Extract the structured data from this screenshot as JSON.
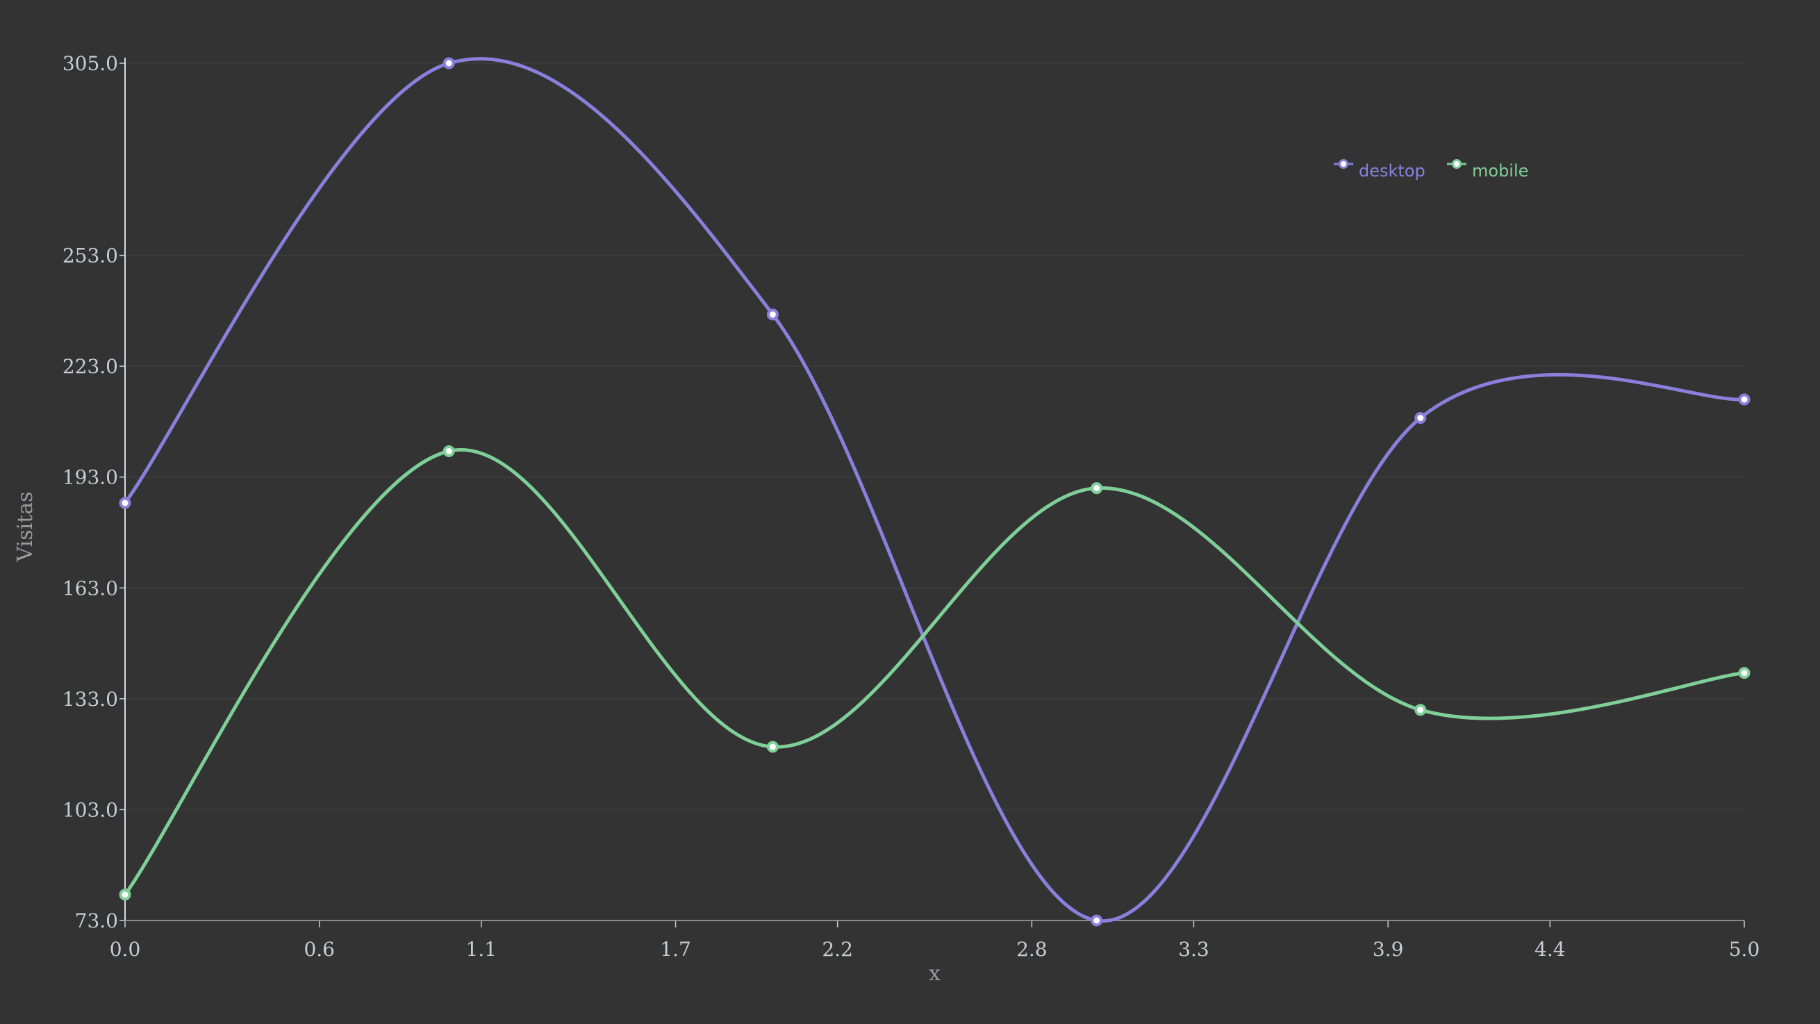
{
  "chart_data": {
    "type": "line",
    "smooth": true,
    "xlabel": "x",
    "ylabel": "Visitas",
    "x": [
      0,
      1,
      2,
      3,
      4,
      5
    ],
    "xlim": [
      0,
      5
    ],
    "ylim": [
      73,
      305
    ],
    "x_ticks": [
      "0.0",
      "0.6",
      "1.1",
      "1.7",
      "2.2",
      "2.8",
      "3.3",
      "3.9",
      "4.4",
      "5.0"
    ],
    "y_ticks": [
      "73.0",
      "103.0",
      "133.0",
      "163.0",
      "193.0",
      "223.0",
      "253.0",
      "305.0"
    ],
    "grid": "horizontal",
    "legend_position": "top-right",
    "series": [
      {
        "name": "desktop",
        "color": "#8b7fdc",
        "values": [
          186,
          305,
          237,
          73,
          209,
          214
        ]
      },
      {
        "name": "mobile",
        "color": "#7fcf98",
        "values": [
          80,
          200,
          120,
          190,
          130,
          140
        ]
      }
    ]
  }
}
